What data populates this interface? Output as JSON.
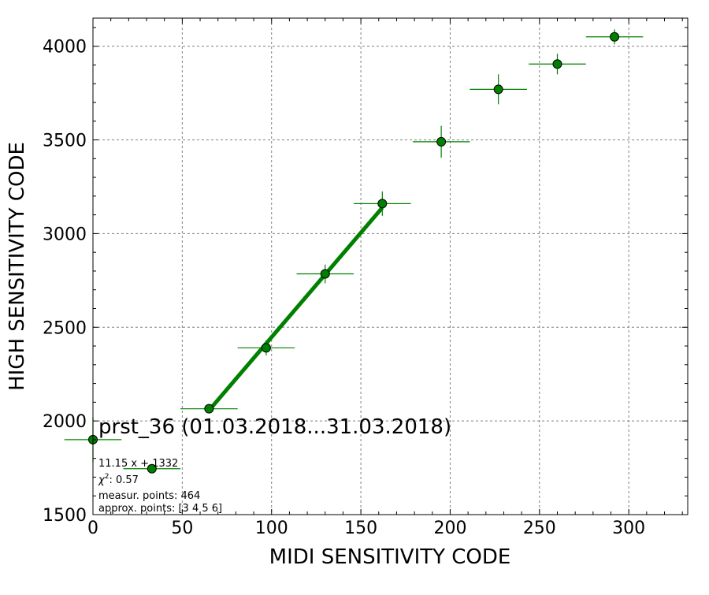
{
  "chart_data": {
    "type": "scatter",
    "title": "prst_36 (01.03.2018...31.03.2018)",
    "xlabel": "MIDI SENSITIVITY CODE",
    "ylabel": "HIGH SENSITIVITY CODE",
    "xlim": [
      0,
      333
    ],
    "ylim": [
      1500,
      4150
    ],
    "xticks": [
      0,
      50,
      100,
      150,
      200,
      250,
      300
    ],
    "yticks": [
      1500,
      2000,
      2500,
      3000,
      3500,
      4000
    ],
    "grid": true,
    "points": [
      {
        "x": 0,
        "y": 1900,
        "xerr": 16,
        "yerr": 120
      },
      {
        "x": 33,
        "y": 1745,
        "xerr": 16,
        "yerr": 10
      },
      {
        "x": 65,
        "y": 2065,
        "xerr": 16,
        "yerr": 10
      },
      {
        "x": 97,
        "y": 2390,
        "xerr": 16,
        "yerr": 40
      },
      {
        "x": 130,
        "y": 2785,
        "xerr": 16,
        "yerr": 50
      },
      {
        "x": 162,
        "y": 3160,
        "xerr": 16,
        "yerr": 65
      },
      {
        "x": 195,
        "y": 3490,
        "xerr": 16,
        "yerr": 85
      },
      {
        "x": 227,
        "y": 3770,
        "xerr": 16,
        "yerr": 80
      },
      {
        "x": 260,
        "y": 3905,
        "xerr": 16,
        "yerr": 55
      },
      {
        "x": 292,
        "y": 4050,
        "xerr": 16,
        "yerr": 40
      }
    ],
    "fit_line": {
      "x_start": 65,
      "x_end": 162,
      "slope": 11.15,
      "intercept": 1332
    },
    "annotations": {
      "equation": "11.15 x + 1332",
      "chi2": ": 0.57",
      "measured": "measur. points: 464",
      "approx": "approx. points: [3 4 5 6]"
    },
    "colors": {
      "marker": "#008000",
      "marker_edge": "#000000",
      "line": "#008000",
      "grid": "#808080"
    }
  }
}
